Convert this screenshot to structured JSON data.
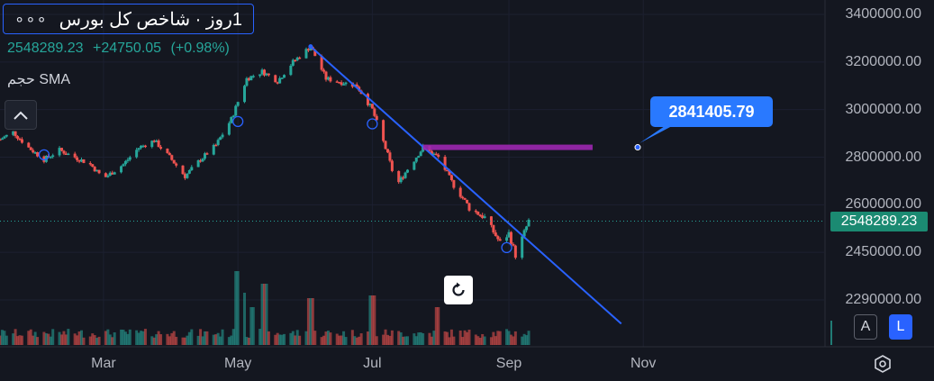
{
  "header": {
    "title": "1روز · شاخص کل بورس",
    "menu_glyph": "∘∘∘",
    "price": "2548289.23",
    "change": "+24750.05",
    "change_pct": "(+0.98%)",
    "indicator_label": "حجم SMA"
  },
  "callout": {
    "text": "2841405.79"
  },
  "price_tag": {
    "text": "2548289.23"
  },
  "buttons": {
    "auto": "A",
    "log": "L"
  },
  "icons": {
    "collapse": "chevron-up-icon",
    "reset": "rotate-icon",
    "settings": "hexagon-gear-icon"
  },
  "colors": {
    "up": "#26a69a",
    "down": "#ef5350",
    "trendline": "#2962ff",
    "horizontal_ray": "#9c27b0",
    "background": "#141720"
  },
  "chart_data": {
    "type": "candlestick",
    "y_axis": {
      "ticks": [
        {
          "label": "3400000.00",
          "value": 3400000
        },
        {
          "label": "3200000.00",
          "value": 3200000
        },
        {
          "label": "3000000.00",
          "value": 3000000
        },
        {
          "label": "2800000.00",
          "value": 2800000
        },
        {
          "label": "2600000.00",
          "value": 2600000
        },
        {
          "label": "2450000.00",
          "value": 2450000
        },
        {
          "label": "2290000.00",
          "value": 2290000
        }
      ],
      "ylim": [
        2210000,
        3470000
      ]
    },
    "x_axis": {
      "ticks": [
        {
          "label": "Mar",
          "date": "2024-03-01"
        },
        {
          "label": "May",
          "date": "2024-05-01"
        },
        {
          "label": "Jul",
          "date": "2024-07-01"
        },
        {
          "label": "Sep",
          "date": "2024-09-01"
        },
        {
          "label": "Nov",
          "date": "2024-11-01"
        }
      ],
      "xlim": [
        "2024-01-14",
        "2025-01-18"
      ]
    },
    "close_path": [
      [
        "2024-01-14",
        2875000
      ],
      [
        "2024-01-20",
        2905000
      ],
      [
        "2024-01-27",
        2840000
      ],
      [
        "2024-02-03",
        2790000
      ],
      [
        "2024-02-10",
        2830000
      ],
      [
        "2024-02-17",
        2800000
      ],
      [
        "2024-02-24",
        2770000
      ],
      [
        "2024-03-01",
        2710000
      ],
      [
        "2024-03-10",
        2770000
      ],
      [
        "2024-03-17",
        2840000
      ],
      [
        "2024-03-24",
        2870000
      ],
      [
        "2024-03-31",
        2800000
      ],
      [
        "2024-04-07",
        2720000
      ],
      [
        "2024-04-14",
        2790000
      ],
      [
        "2024-04-21",
        2850000
      ],
      [
        "2024-04-28",
        2960000
      ],
      [
        "2024-05-05",
        3130000
      ],
      [
        "2024-05-12",
        3160000
      ],
      [
        "2024-05-19",
        3120000
      ],
      [
        "2024-05-26",
        3200000
      ],
      [
        "2024-06-03",
        3265000
      ],
      [
        "2024-06-10",
        3130000
      ],
      [
        "2024-06-17",
        3115000
      ],
      [
        "2024-06-24",
        3100000
      ],
      [
        "2024-07-01",
        3000000
      ],
      [
        "2024-07-08",
        2810000
      ],
      [
        "2024-07-12",
        2680000
      ],
      [
        "2024-07-17",
        2750000
      ],
      [
        "2024-07-24",
        2840000
      ],
      [
        "2024-07-31",
        2800000
      ],
      [
        "2024-08-07",
        2680000
      ],
      [
        "2024-08-14",
        2590000
      ],
      [
        "2024-08-21",
        2560000
      ],
      [
        "2024-08-28",
        2480000
      ],
      [
        "2024-09-01",
        2510000
      ],
      [
        "2024-09-04",
        2440000
      ],
      [
        "2024-09-10",
        2548289
      ]
    ],
    "volume": [
      {
        "date": "2024-05-01",
        "value": 0.82
      },
      {
        "date": "2024-05-03",
        "value": 0.58
      },
      {
        "date": "2024-05-08",
        "value": 0.42
      },
      {
        "date": "2024-05-13",
        "value": 0.68
      },
      {
        "date": "2024-06-03",
        "value": 0.52
      },
      {
        "date": "2024-07-01",
        "value": 0.55
      },
      {
        "date": "2024-07-31",
        "value": 0.42
      },
      {
        "date": "2024-09-14",
        "value": 0.22
      }
    ],
    "last_price": 2548289.23,
    "trendline": {
      "from": [
        "2024-06-03",
        3265000
      ],
      "to": [
        "2024-10-22",
        2210000
      ]
    },
    "horizontal_ray": {
      "from": "2024-07-24",
      "to": "2024-10-09",
      "value": 2841405.79
    }
  }
}
